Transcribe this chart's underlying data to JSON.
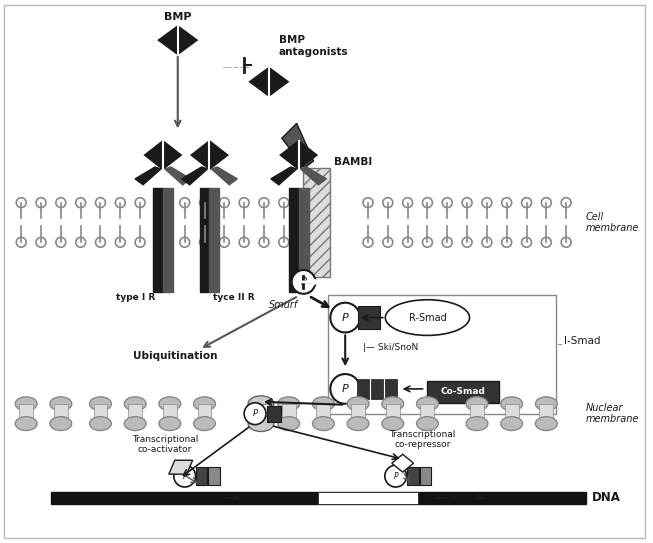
{
  "bg_color": "#f0f0f0",
  "white": "#ffffff",
  "dark": "#1a1a1a",
  "mid_gray": "#666666",
  "light_gray": "#aaaaaa",
  "mem_color": "#888888",
  "bambi_hatch": "///",
  "bmp_label": "BMP",
  "bmp_antagonists_label": "BMP\nantagonists",
  "bambi_label": "BAMBI",
  "type1r_label": "type I R",
  "type2r_label": "tyce II R",
  "rsmad_label": "R-Smad",
  "ismad_label": "I-Smad",
  "cosmad_label": "Co-Smad",
  "skisnon_label": "Ski/SnoN",
  "smurf_label": "Smurf",
  "ubiquitination_label": "Ubiquitination",
  "trans_coactivator_label": "Transcriptional\nco-activator",
  "trans_corepressor_label": "Transcriptional\nco-repressor",
  "cell_membrane_label": "Cell\nmembrane",
  "nuclear_membrane_label": "Nuclear\nmembrane",
  "dna_label": "DNA"
}
